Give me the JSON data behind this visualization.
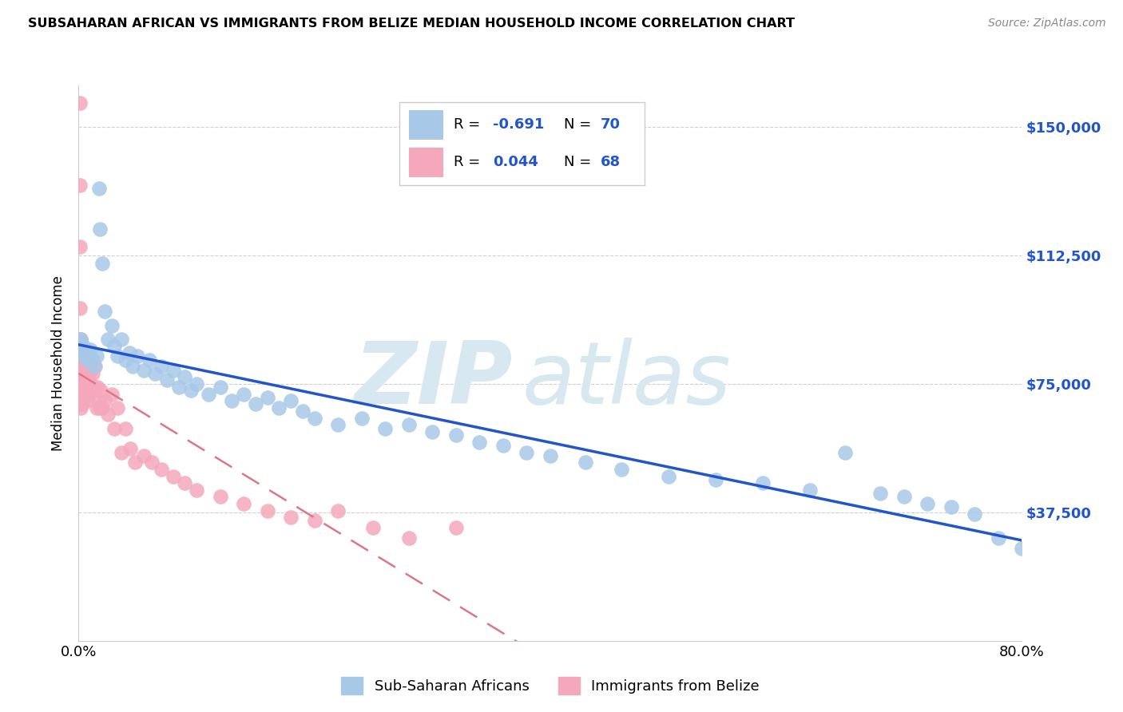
{
  "title": "SUBSAHARAN AFRICAN VS IMMIGRANTS FROM BELIZE MEDIAN HOUSEHOLD INCOME CORRELATION CHART",
  "source": "Source: ZipAtlas.com",
  "ylabel": "Median Household Income",
  "yticks": [
    37500,
    75000,
    112500,
    150000
  ],
  "ytick_labels": [
    "$37,500",
    "$75,000",
    "$112,500",
    "$150,000"
  ],
  "xlim": [
    0.0,
    0.8
  ],
  "ylim": [
    0,
    162000
  ],
  "blue_color": "#a8c8e8",
  "pink_color": "#f5a8bb",
  "line_blue": "#2255cc",
  "line_pink": "#dd7788",
  "blue_r": "-0.691",
  "blue_n": "70",
  "pink_r": "0.044",
  "pink_n": "68",
  "label_blue": "Sub-Saharan Africans",
  "label_pink": "Immigrants from Belize",
  "blue_scatter_x": [
    0.001,
    0.002,
    0.003,
    0.004,
    0.005,
    0.006,
    0.007,
    0.008,
    0.009,
    0.01,
    0.012,
    0.013,
    0.015,
    0.017,
    0.018,
    0.02,
    0.022,
    0.025,
    0.028,
    0.03,
    0.033,
    0.036,
    0.04,
    0.043,
    0.046,
    0.05,
    0.055,
    0.06,
    0.065,
    0.07,
    0.075,
    0.08,
    0.085,
    0.09,
    0.095,
    0.1,
    0.11,
    0.12,
    0.13,
    0.14,
    0.15,
    0.16,
    0.17,
    0.18,
    0.19,
    0.2,
    0.22,
    0.24,
    0.26,
    0.28,
    0.3,
    0.32,
    0.34,
    0.36,
    0.38,
    0.4,
    0.43,
    0.46,
    0.5,
    0.54,
    0.58,
    0.62,
    0.65,
    0.68,
    0.7,
    0.72,
    0.74,
    0.76,
    0.78,
    0.8
  ],
  "blue_scatter_y": [
    87000,
    88000,
    84000,
    86000,
    83000,
    85000,
    82000,
    84000,
    83000,
    85000,
    82000,
    80000,
    83000,
    132000,
    120000,
    110000,
    96000,
    88000,
    92000,
    86000,
    83000,
    88000,
    82000,
    84000,
    80000,
    83000,
    79000,
    82000,
    78000,
    80000,
    76000,
    79000,
    74000,
    77000,
    73000,
    75000,
    72000,
    74000,
    70000,
    72000,
    69000,
    71000,
    68000,
    70000,
    67000,
    65000,
    63000,
    65000,
    62000,
    63000,
    61000,
    60000,
    58000,
    57000,
    55000,
    54000,
    52000,
    50000,
    48000,
    47000,
    46000,
    44000,
    55000,
    43000,
    42000,
    40000,
    39000,
    37000,
    30000,
    27000
  ],
  "pink_scatter_x": [
    0.001,
    0.001,
    0.001,
    0.001,
    0.001,
    0.001,
    0.001,
    0.001,
    0.001,
    0.001,
    0.002,
    0.002,
    0.002,
    0.002,
    0.002,
    0.003,
    0.003,
    0.003,
    0.003,
    0.004,
    0.004,
    0.004,
    0.005,
    0.005,
    0.006,
    0.006,
    0.007,
    0.007,
    0.008,
    0.008,
    0.009,
    0.009,
    0.01,
    0.01,
    0.011,
    0.012,
    0.013,
    0.014,
    0.015,
    0.016,
    0.017,
    0.018,
    0.019,
    0.02,
    0.022,
    0.025,
    0.028,
    0.03,
    0.033,
    0.036,
    0.04,
    0.044,
    0.048,
    0.055,
    0.062,
    0.07,
    0.08,
    0.09,
    0.1,
    0.12,
    0.14,
    0.16,
    0.18,
    0.2,
    0.22,
    0.25,
    0.28,
    0.32
  ],
  "pink_scatter_y": [
    157000,
    133000,
    115000,
    97000,
    88000,
    80000,
    77000,
    75000,
    73000,
    70000,
    88000,
    82000,
    77000,
    72000,
    68000,
    84000,
    78000,
    74000,
    69000,
    80000,
    74000,
    70000,
    78000,
    73000,
    78000,
    72000,
    76000,
    70000,
    76000,
    72000,
    78000,
    72000,
    80000,
    74000,
    74000,
    78000,
    74000,
    80000,
    68000,
    74000,
    70000,
    68000,
    73000,
    68000,
    70000,
    66000,
    72000,
    62000,
    68000,
    55000,
    62000,
    56000,
    52000,
    54000,
    52000,
    50000,
    48000,
    46000,
    44000,
    42000,
    40000,
    38000,
    36000,
    35000,
    38000,
    33000,
    30000,
    33000
  ]
}
